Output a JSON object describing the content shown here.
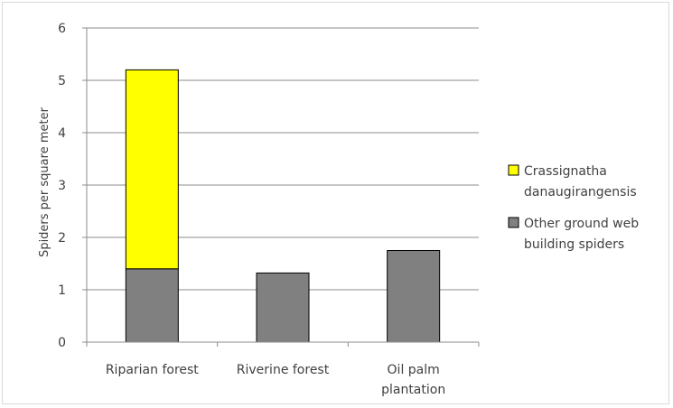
{
  "chart_data": {
    "type": "bar",
    "stacked": true,
    "categories": [
      "Riparian forest",
      "Riverine forest",
      "Oil palm plantation"
    ],
    "category_label_lines": [
      [
        "Riparian forest"
      ],
      [
        "Riverine forest"
      ],
      [
        "Oil palm",
        "plantation"
      ]
    ],
    "series": [
      {
        "name": "Other ground web building spiders",
        "legend_lines": [
          "Other ground web",
          "building spiders"
        ],
        "color": "#808080",
        "values": [
          1.4,
          1.32,
          1.75
        ]
      },
      {
        "name": "Crassignatha danaugirangensis",
        "legend_lines": [
          "Crassignatha",
          "danaugirangensis"
        ],
        "color": "#ffff00",
        "values": [
          3.8,
          0,
          0
        ]
      }
    ],
    "title": "",
    "xlabel": "",
    "ylabel": "Spiders per  square meter",
    "ylim": [
      0,
      6
    ],
    "yticks": [
      0,
      1,
      2,
      3,
      4,
      5,
      6
    ],
    "grid": true,
    "legend_position": "right"
  }
}
